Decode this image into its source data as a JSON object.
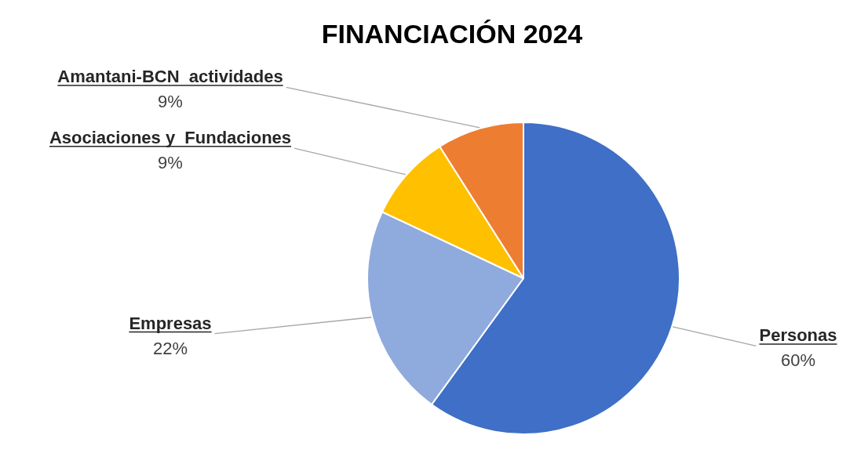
{
  "chart_data": {
    "type": "pie",
    "title": "FINANCIACIÓN 2024",
    "categories": [
      "Personas",
      "Empresas",
      "Asociaciones y  Fundaciones",
      "Amantani-BCN  actividades"
    ],
    "values": [
      60,
      22,
      9,
      9
    ],
    "colors": [
      "#3f6fc6",
      "#8faadc",
      "#ffc000",
      "#ed7d31"
    ],
    "value_labels": [
      "60%",
      "22%",
      "9%",
      "9%"
    ],
    "legend": false
  }
}
